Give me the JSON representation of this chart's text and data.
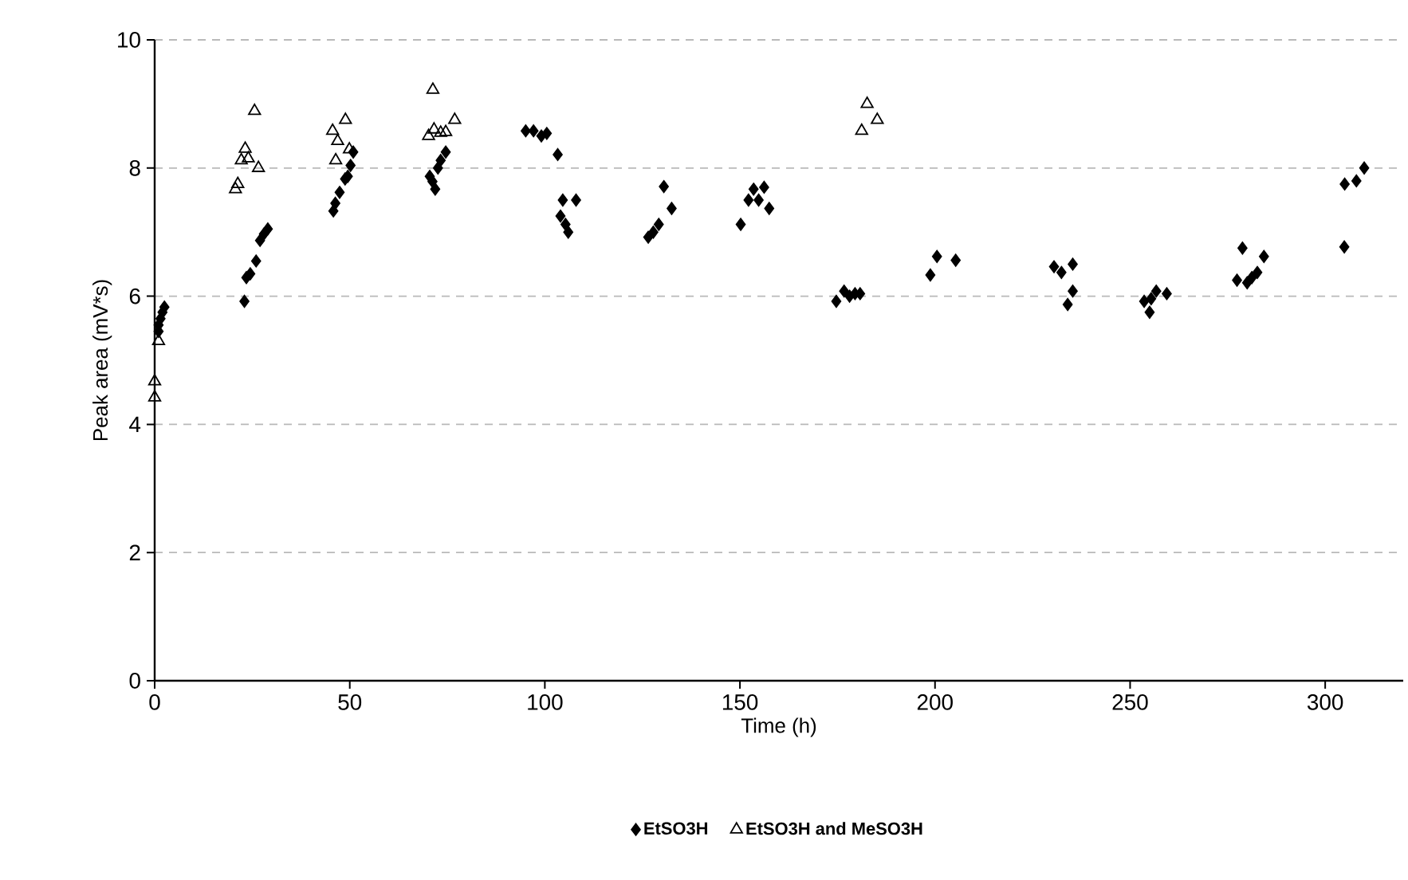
{
  "chart_data": {
    "type": "scatter",
    "xlabel": "Time (h)",
    "ylabel": "Peak area (mV*s)",
    "xlim": [
      0,
      320
    ],
    "xticks": [
      0,
      50,
      100,
      150,
      200,
      250,
      300
    ],
    "ylim": [
      0,
      10
    ],
    "yticks": [
      0,
      2,
      4,
      6,
      8,
      10
    ],
    "grid": "y",
    "legend": "bottom",
    "series": [
      {
        "name": "EtSO3H",
        "color": "#000000",
        "marker": "diamond",
        "x": [
          1,
          1,
          1.5,
          2,
          2.5,
          23,
          23.5,
          24.5,
          26,
          27,
          28,
          29,
          45.8,
          46.3,
          47.4,
          48.8,
          49.5,
          50.2,
          50.9,
          70.5,
          71.2,
          71.9,
          72.6,
          73.3,
          74.6,
          95.1,
          97.1,
          99.1,
          100.5,
          103.3,
          104,
          104.6,
          105.3,
          106,
          108,
          126.5,
          127.8,
          129.2,
          130.5,
          132.5,
          150.2,
          152.2,
          153.5,
          154.8,
          156.2,
          157.5,
          174.7,
          176.7,
          178.1,
          179.5,
          180.8,
          198.8,
          200.5,
          205.3,
          230.5,
          232.4,
          234,
          235.3,
          235.3,
          253.6,
          255,
          255.4,
          256.7,
          259.4,
          277.4,
          278.8,
          280,
          281.2,
          282.6,
          284.3,
          304.9,
          305,
          308,
          310
        ],
        "values": [
          5.45,
          5.55,
          5.65,
          5.75,
          5.83,
          5.92,
          6.29,
          6.35,
          6.55,
          6.87,
          6.97,
          7.05,
          7.33,
          7.45,
          7.62,
          7.83,
          7.87,
          8.04,
          8.25,
          7.87,
          7.79,
          7.67,
          8.0,
          8.12,
          8.25,
          8.58,
          8.58,
          8.5,
          8.54,
          8.21,
          7.25,
          7.5,
          7.12,
          7.0,
          7.5,
          6.92,
          7.0,
          7.12,
          7.71,
          7.37,
          7.12,
          7.5,
          7.67,
          7.5,
          7.7,
          7.37,
          5.92,
          6.08,
          6.0,
          6.04,
          6.04,
          6.33,
          6.62,
          6.56,
          6.46,
          6.37,
          5.87,
          6.5,
          6.08,
          5.92,
          5.75,
          5.96,
          6.08,
          6.04,
          6.25,
          6.75,
          6.21,
          6.29,
          6.37,
          6.62,
          6.77,
          7.75,
          7.8,
          8.0
        ]
      },
      {
        "name": "EtSO3H and MeSO3H",
        "color": "#000000",
        "marker": "triangle",
        "x": [
          0,
          0,
          1,
          20.7,
          21.3,
          22.2,
          23.2,
          24,
          25.6,
          26.6,
          45.6,
          46.4,
          46.9,
          48.9,
          49.9,
          70.2,
          71.3,
          71.6,
          73.3,
          74.6,
          76.9,
          181.2,
          182.6,
          185.2
        ],
        "values": [
          4.42,
          4.67,
          5.3,
          7.67,
          7.75,
          8.12,
          8.3,
          8.15,
          8.89,
          8.0,
          8.58,
          8.12,
          8.42,
          8.75,
          8.29,
          8.5,
          9.22,
          8.6,
          8.55,
          8.56,
          8.75,
          8.58,
          9.0,
          8.75
        ]
      }
    ]
  }
}
